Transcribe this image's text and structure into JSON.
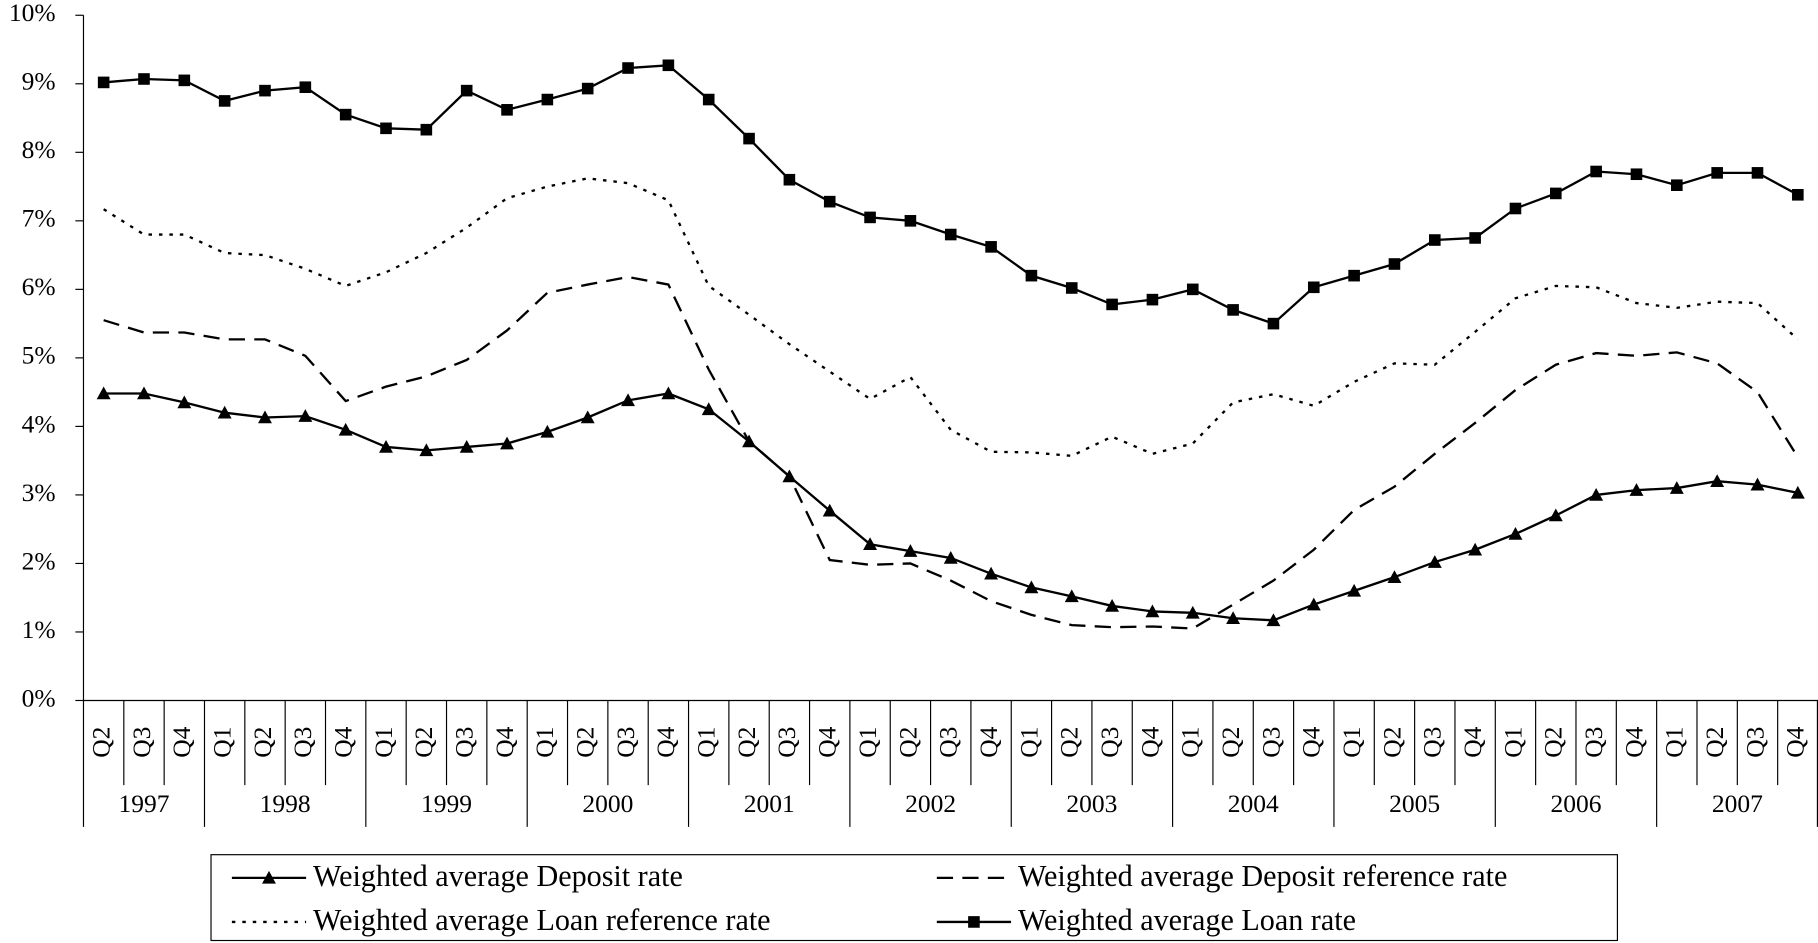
{
  "chart_data": {
    "type": "line",
    "year_groups": [
      {
        "label": "1997",
        "quarters": [
          "Q2",
          "Q3",
          "Q4"
        ]
      },
      {
        "label": "1998",
        "quarters": [
          "Q1",
          "Q2",
          "Q3",
          "Q4"
        ]
      },
      {
        "label": "1999",
        "quarters": [
          "Q1",
          "Q2",
          "Q3",
          "Q4"
        ]
      },
      {
        "label": "2000",
        "quarters": [
          "Q1",
          "Q2",
          "Q3",
          "Q4"
        ]
      },
      {
        "label": "2001",
        "quarters": [
          "Q1",
          "Q2",
          "Q3",
          "Q4"
        ]
      },
      {
        "label": "2002",
        "quarters": [
          "Q1",
          "Q2",
          "Q3",
          "Q4"
        ]
      },
      {
        "label": "2003",
        "quarters": [
          "Q1",
          "Q2",
          "Q3",
          "Q4"
        ]
      },
      {
        "label": "2004",
        "quarters": [
          "Q1",
          "Q2",
          "Q3",
          "Q4"
        ]
      },
      {
        "label": "2005",
        "quarters": [
          "Q1",
          "Q2",
          "Q3",
          "Q4"
        ]
      },
      {
        "label": "2006",
        "quarters": [
          "Q1",
          "Q2",
          "Q3",
          "Q4"
        ]
      },
      {
        "label": "2007",
        "quarters": [
          "Q1",
          "Q2",
          "Q3",
          "Q4"
        ]
      }
    ],
    "series": [
      {
        "name": "Weighted average Deposit rate",
        "color": "#000000",
        "line_style": "solid",
        "marker": "triangle",
        "values": [
          4.48,
          4.48,
          4.35,
          4.2,
          4.13,
          4.15,
          3.95,
          3.7,
          3.65,
          3.7,
          3.75,
          3.92,
          4.13,
          4.38,
          4.48,
          4.25,
          3.78,
          3.27,
          2.77,
          2.28,
          2.18,
          2.08,
          1.85,
          1.65,
          1.52,
          1.38,
          1.3,
          1.28,
          1.2,
          1.17,
          1.4,
          1.6,
          1.8,
          2.02,
          2.2,
          2.43,
          2.7,
          3.0,
          3.07,
          3.1,
          3.2,
          3.15,
          3.03
        ]
      },
      {
        "name": "Weighted average Deposit reference rate",
        "color": "#000000",
        "line_style": "dashed",
        "marker": "none",
        "values": [
          5.55,
          5.37,
          5.37,
          5.27,
          5.27,
          5.03,
          4.37,
          4.58,
          4.73,
          4.97,
          5.4,
          5.95,
          6.07,
          6.18,
          6.07,
          4.83,
          3.78,
          3.27,
          2.05,
          1.98,
          2.0,
          1.75,
          1.45,
          1.25,
          1.1,
          1.07,
          1.08,
          1.05,
          1.4,
          1.75,
          2.2,
          2.78,
          3.12,
          3.6,
          4.05,
          4.53,
          4.9,
          5.07,
          5.03,
          5.08,
          4.92,
          4.5,
          3.55
        ]
      },
      {
        "name": "Weighted average Loan reference rate",
        "color": "#000000",
        "line_style": "dotted",
        "marker": "none",
        "values": [
          7.17,
          6.8,
          6.8,
          6.53,
          6.5,
          6.3,
          6.05,
          6.25,
          6.53,
          6.9,
          7.33,
          7.5,
          7.62,
          7.55,
          7.3,
          6.05,
          5.63,
          5.2,
          4.8,
          4.4,
          4.72,
          3.95,
          3.63,
          3.62,
          3.57,
          3.85,
          3.6,
          3.75,
          4.35,
          4.47,
          4.3,
          4.65,
          4.92,
          4.9,
          5.38,
          5.87,
          6.05,
          6.03,
          5.8,
          5.73,
          5.82,
          5.8,
          5.27
        ]
      },
      {
        "name": "Weighted average Loan rate",
        "color": "#000000",
        "line_style": "solid",
        "marker": "square",
        "values": [
          9.02,
          9.07,
          9.05,
          8.75,
          8.9,
          8.95,
          8.55,
          8.35,
          8.33,
          8.9,
          8.62,
          8.77,
          8.93,
          9.23,
          9.27,
          8.77,
          8.2,
          7.6,
          7.28,
          7.05,
          7.0,
          6.8,
          6.62,
          6.2,
          6.02,
          5.78,
          5.85,
          6.0,
          5.7,
          5.5,
          6.03,
          6.2,
          6.37,
          6.72,
          6.75,
          7.18,
          7.4,
          7.72,
          7.68,
          7.52,
          7.7,
          7.7,
          7.38
        ]
      }
    ],
    "ylim": [
      0,
      10
    ],
    "yticks": [
      {
        "value": 0,
        "label": "0%"
      },
      {
        "value": 1,
        "label": "1%"
      },
      {
        "value": 2,
        "label": "2%"
      },
      {
        "value": 3,
        "label": "3%"
      },
      {
        "value": 4,
        "label": "4%"
      },
      {
        "value": 5,
        "label": "5%"
      },
      {
        "value": 6,
        "label": "6%"
      },
      {
        "value": 7,
        "label": "7%"
      },
      {
        "value": 8,
        "label": "8%"
      },
      {
        "value": 9,
        "label": "9%"
      },
      {
        "value": 10,
        "label": "10%"
      }
    ],
    "grid": false,
    "legend": "bottom"
  }
}
